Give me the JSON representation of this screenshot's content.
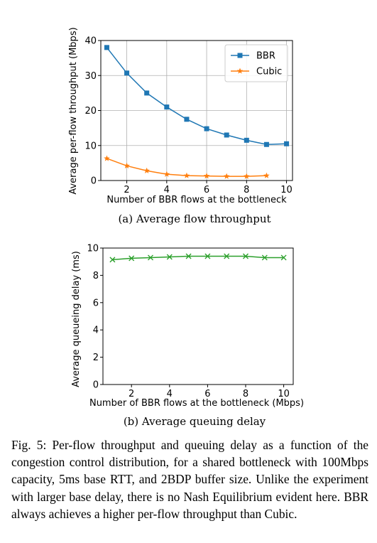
{
  "chart_data": [
    {
      "type": "line",
      "subcaption": "(a) Average flow throughput",
      "xlabel": "Number of BBR flows at the bottleneck",
      "ylabel": "Average per-flow throughput (Mbps)",
      "xlim": [
        0.7,
        10.3
      ],
      "ylim": [
        0,
        40
      ],
      "xticks": [
        2,
        4,
        6,
        8,
        10
      ],
      "yticks": [
        0,
        10,
        20,
        30,
        40
      ],
      "grid": true,
      "legend_position": "top-right",
      "series": [
        {
          "name": "BBR",
          "color": "#1f77b4",
          "marker": "square",
          "x": [
            1,
            2,
            3,
            4,
            5,
            6,
            7,
            8,
            9,
            10
          ],
          "values": [
            38.0,
            30.7,
            25.0,
            21.0,
            17.5,
            14.8,
            13.0,
            11.5,
            10.3,
            10.5
          ]
        },
        {
          "name": "Cubic",
          "color": "#ff7f0e",
          "marker": "star",
          "x": [
            1,
            2,
            3,
            4,
            5,
            6,
            7,
            8,
            9
          ],
          "values": [
            6.3,
            4.2,
            2.8,
            1.8,
            1.4,
            1.3,
            1.2,
            1.2,
            1.4
          ]
        }
      ]
    },
    {
      "type": "line",
      "subcaption": "(b) Average queuing delay",
      "xlabel": "Number of BBR flows at the bottleneck (Mbps)",
      "ylabel": "Average queueing delay (ms)",
      "xlim": [
        0.5,
        10.5
      ],
      "ylim": [
        0,
        10
      ],
      "xticks": [
        2,
        4,
        6,
        8,
        10
      ],
      "yticks": [
        0,
        2,
        4,
        6,
        8,
        10
      ],
      "grid": false,
      "series": [
        {
          "color": "#2ca02c",
          "marker": "x",
          "x": [
            1,
            2,
            3,
            4,
            5,
            6,
            7,
            8,
            9,
            10
          ],
          "values": [
            9.15,
            9.25,
            9.3,
            9.35,
            9.4,
            9.4,
            9.4,
            9.4,
            9.3,
            9.3
          ]
        }
      ]
    }
  ],
  "caption": "Fig. 5: Per-flow throughput and queuing delay as a function of the congestion control distribution, for a shared bottleneck with 100Mbps capacity, 5ms base RTT, and 2BDP buffer size. Unlike the experiment with larger base delay, there is no Nash Equilibrium evident here. BBR always achieves a higher per-flow throughput than Cubic."
}
